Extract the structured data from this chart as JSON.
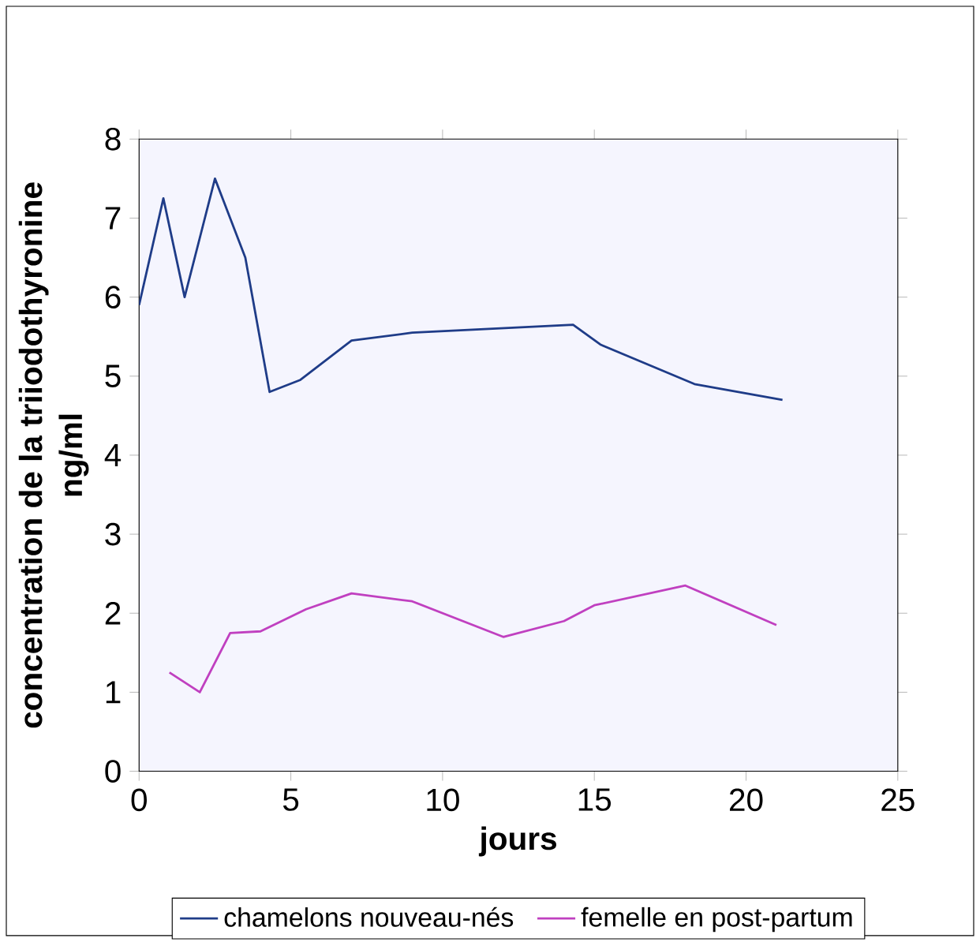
{
  "chart_data": {
    "type": "line",
    "xlabel": "jours",
    "ylabel": "concentration de la triiodothyronine ng/ml",
    "xlim": [
      0,
      25
    ],
    "xticks": [
      0,
      5,
      10,
      15,
      20,
      25
    ],
    "ylim": [
      0,
      8
    ],
    "yticks": [
      0,
      1,
      2,
      3,
      4,
      5,
      6,
      7,
      8
    ],
    "grid": false,
    "legend": "bottom",
    "marker": "none",
    "line_style": "solid",
    "series": [
      {
        "name": "chamelons nouveau-nés",
        "color": "#1f3c88",
        "x": [
          0,
          0.8,
          1.5,
          2.5,
          3.5,
          4.3,
          5.3,
          7,
          9,
          14.3,
          15.2,
          18.3,
          21.2
        ],
        "values": [
          5.9,
          7.25,
          6.0,
          7.5,
          6.5,
          4.8,
          4.95,
          5.45,
          5.55,
          5.65,
          5.4,
          4.9,
          4.7
        ]
      },
      {
        "name": "femelle en post-partum",
        "color": "#c040c0",
        "x": [
          1,
          2,
          3,
          4,
          5.5,
          7,
          9,
          12,
          14,
          15,
          18,
          21
        ],
        "values": [
          1.25,
          1.0,
          1.75,
          1.77,
          2.05,
          2.25,
          2.15,
          1.7,
          1.9,
          2.1,
          2.35,
          1.85
        ]
      }
    ]
  }
}
